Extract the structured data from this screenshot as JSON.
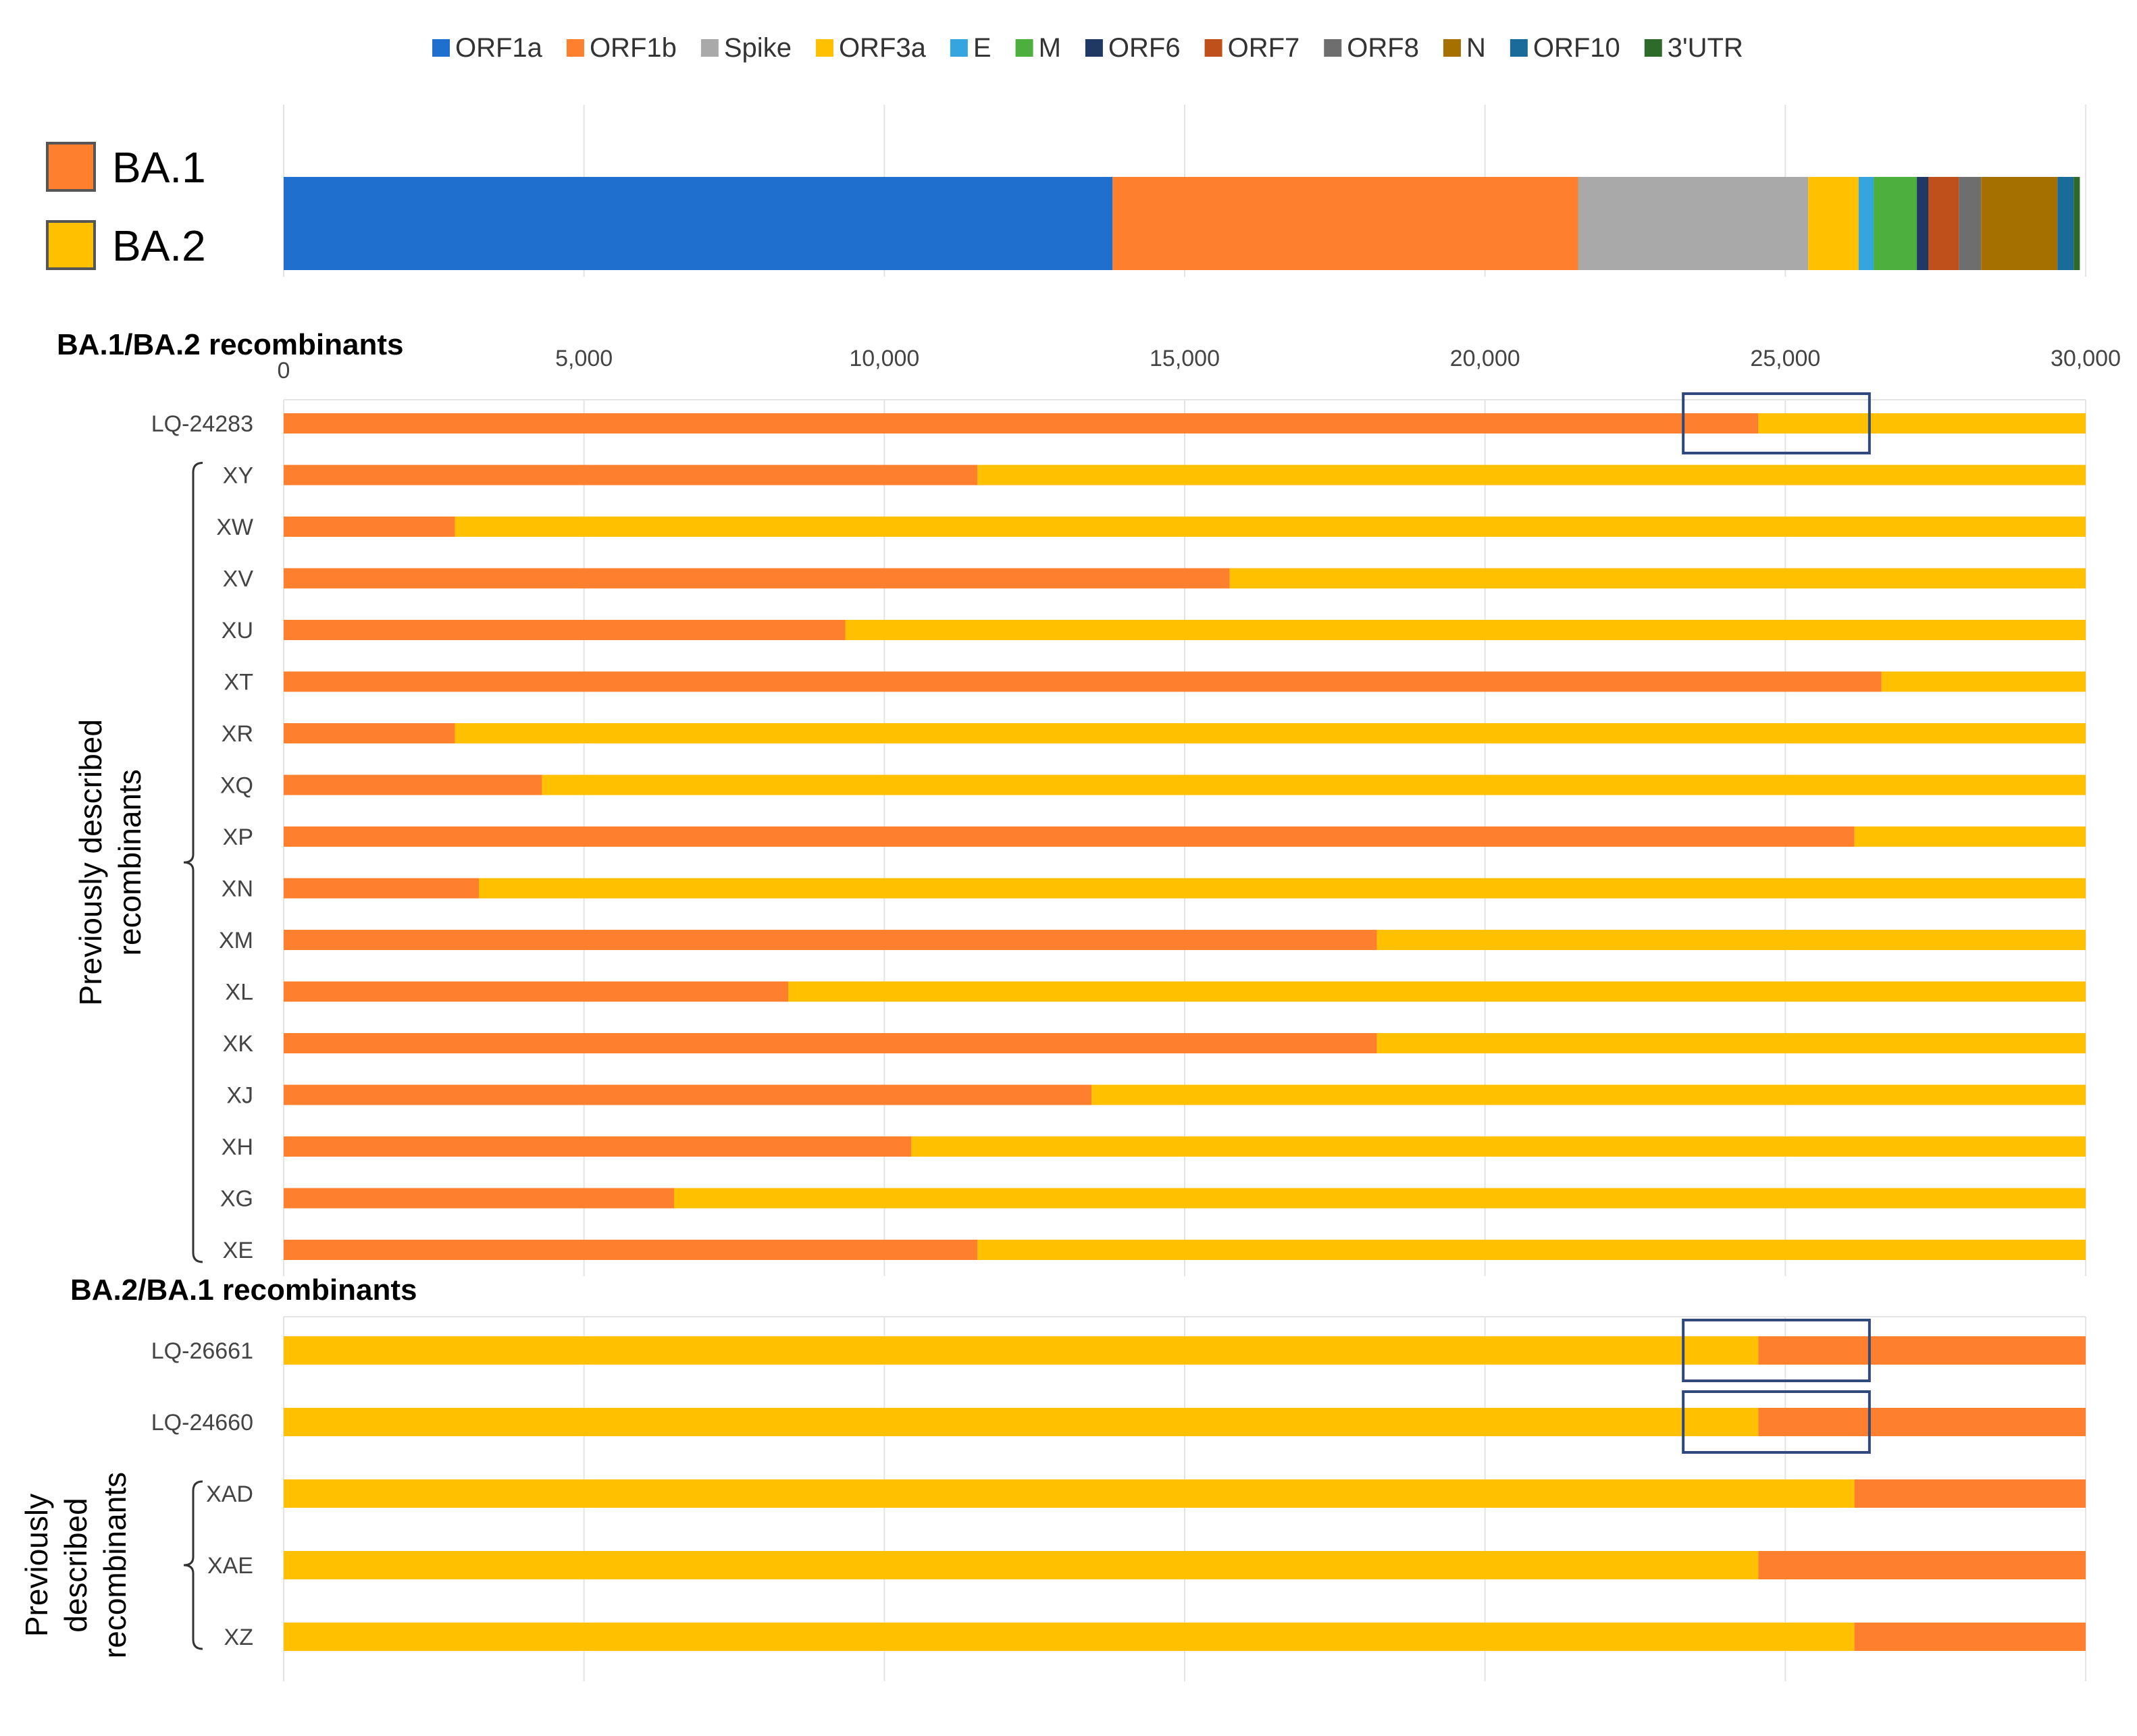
{
  "chart_data": {
    "type": "bar",
    "axis": {
      "min": 0,
      "max": 30000,
      "ticks": [
        0,
        5000,
        10000,
        15000,
        20000,
        25000,
        30000
      ],
      "tick_labels": [
        "0",
        "5,000",
        "10,000",
        "15,000",
        "20,000",
        "25,000",
        "30,000"
      ]
    },
    "genome_legend": [
      {
        "label": "ORF1a",
        "color": "#1F6FCF"
      },
      {
        "label": "ORF1b",
        "color": "#FE7F2D"
      },
      {
        "label": "Spike",
        "color": "#A9A9A9"
      },
      {
        "label": "ORF3a",
        "color": "#FFC000"
      },
      {
        "label": "E",
        "color": "#35A5E0"
      },
      {
        "label": "M",
        "color": "#4CAF3E"
      },
      {
        "label": "ORF6",
        "color": "#203864"
      },
      {
        "label": "ORF7",
        "color": "#C0501B"
      },
      {
        "label": "ORF8",
        "color": "#6E6E6E"
      },
      {
        "label": "N",
        "color": "#A57000"
      },
      {
        "label": "ORF10",
        "color": "#1A6A9A"
      },
      {
        "label": "3'UTR",
        "color": "#2E6B2A"
      }
    ],
    "genome_segments": [
      {
        "name": "ORF1a",
        "start": 0,
        "end": 13800
      },
      {
        "name": "ORF1b",
        "start": 13800,
        "end": 21550
      },
      {
        "name": "Spike",
        "start": 21550,
        "end": 25380
      },
      {
        "name": "ORF3a",
        "start": 25380,
        "end": 26220
      },
      {
        "name": "E",
        "start": 26220,
        "end": 26470
      },
      {
        "name": "M",
        "start": 26470,
        "end": 27190
      },
      {
        "name": "ORF6",
        "start": 27190,
        "end": 27380
      },
      {
        "name": "ORF7",
        "start": 27380,
        "end": 27890
      },
      {
        "name": "ORF8",
        "start": 27890,
        "end": 28260
      },
      {
        "name": "N",
        "start": 28260,
        "end": 29530
      },
      {
        "name": "ORF10",
        "start": 29530,
        "end": 29800
      },
      {
        "name": "3'UTR",
        "start": 29800,
        "end": 29903
      }
    ],
    "lineage_legend": [
      {
        "label": "BA.1",
        "color": "#FE7F2D"
      },
      {
        "label": "BA.2",
        "color": "#FFC000"
      }
    ],
    "sections": [
      {
        "title": "BA.1/BA.2 recombinants",
        "first": "BA.1",
        "second": "BA.2",
        "group_label": [
          "Previously described",
          "recombinants"
        ],
        "rows": [
          {
            "label": "LQ-24283",
            "breakpoint": 24550,
            "highlight": [
              23300,
              26400
            ]
          },
          {
            "label": "XY",
            "breakpoint": 11550
          },
          {
            "label": "XW",
            "breakpoint": 2850
          },
          {
            "label": "XV",
            "breakpoint": 15750
          },
          {
            "label": "XU",
            "breakpoint": 9350
          },
          {
            "label": "XT",
            "breakpoint": 26600
          },
          {
            "label": "XR",
            "breakpoint": 2850
          },
          {
            "label": "XQ",
            "breakpoint": 4300
          },
          {
            "label": "XP",
            "breakpoint": 26150
          },
          {
            "label": "XN",
            "breakpoint": 3250
          },
          {
            "label": "XM",
            "breakpoint": 18200
          },
          {
            "label": "XL",
            "breakpoint": 8400
          },
          {
            "label": "XK",
            "breakpoint": 18200
          },
          {
            "label": "XJ",
            "breakpoint": 13450
          },
          {
            "label": "XH",
            "breakpoint": 10450
          },
          {
            "label": "XG",
            "breakpoint": 6500
          },
          {
            "label": "XE",
            "breakpoint": 11550
          }
        ]
      },
      {
        "title": "BA.2/BA.1 recombinants",
        "first": "BA.2",
        "second": "BA.1",
        "group_label": [
          "Previously",
          "described",
          "recombinants"
        ],
        "rows": [
          {
            "label": "LQ-26661",
            "breakpoint": 24550,
            "highlight": [
              23300,
              26400
            ]
          },
          {
            "label": "LQ-24660",
            "breakpoint": 24550,
            "highlight": [
              23300,
              26400
            ]
          },
          {
            "label": "XAD",
            "breakpoint": 26150
          },
          {
            "label": "XAE",
            "breakpoint": 24550
          },
          {
            "label": "XZ",
            "breakpoint": 26150
          }
        ]
      }
    ]
  }
}
